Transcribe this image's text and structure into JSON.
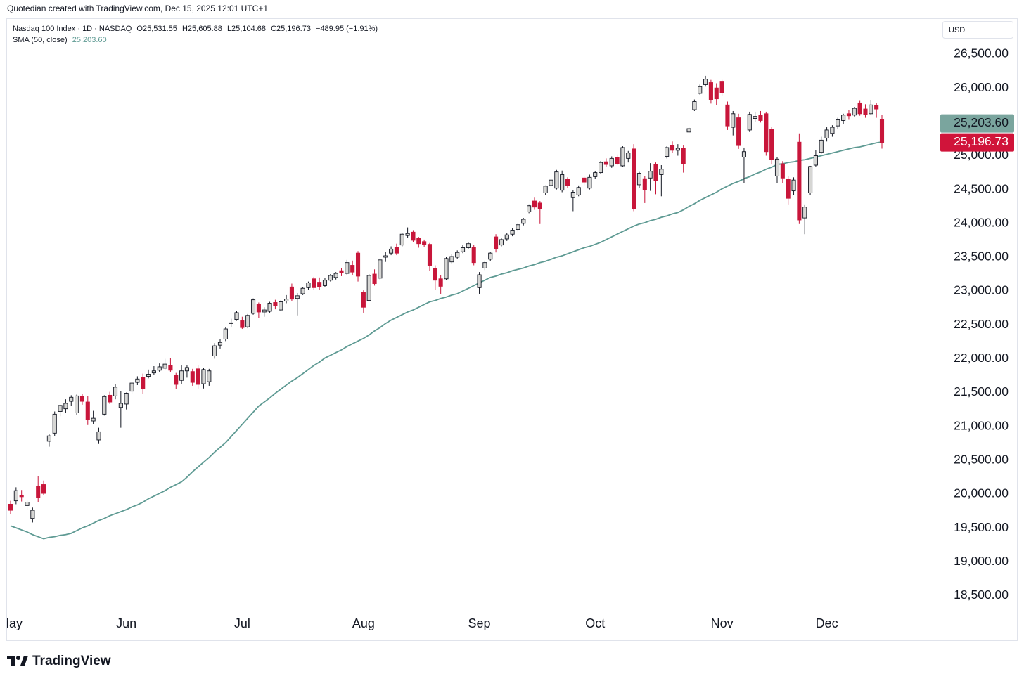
{
  "header": {
    "credit": "Quotedian created with TradingView.com, Dec 15, 2025 12:01 UTC+1"
  },
  "brand": "TradingView",
  "chart_data": {
    "type": "candlestick",
    "symbol": "Nasdaq 100 Index · 1D · NASDAQ",
    "legend_values": [
      "O25,531.55",
      "H25,605.88",
      "L25,104.68",
      "C25,196.73",
      "−489.95 (−1.91%)"
    ],
    "currency": "USD",
    "up_color": "#d6d6d4",
    "down_color": "#c8163a",
    "grid": false,
    "ylim": [
      17840,
      27020
    ],
    "yticks": [
      {
        "value": 18500,
        "label": "18,500.00"
      },
      {
        "value": 19000,
        "label": "19,000.00"
      },
      {
        "value": 19500,
        "label": "19,500.00"
      },
      {
        "value": 20000,
        "label": "20,000.00"
      },
      {
        "value": 20500,
        "label": "20,500.00"
      },
      {
        "value": 21000,
        "label": "21,000.00"
      },
      {
        "value": 21500,
        "label": "21,500.00"
      },
      {
        "value": 22000,
        "label": "22,000.00"
      },
      {
        "value": 22500,
        "label": "22,500.00"
      },
      {
        "value": 23000,
        "label": "23,000.00"
      },
      {
        "value": 23500,
        "label": "23,500.00"
      },
      {
        "value": 24000,
        "label": "24,000.00"
      },
      {
        "value": 24500,
        "label": "24,500.00"
      },
      {
        "value": 25000,
        "label": "25,000.00"
      },
      {
        "value": 25500,
        "label": "25,500.00"
      },
      {
        "value": 26000,
        "label": "26,000.00"
      },
      {
        "value": 26500,
        "label": "26,500.00"
      }
    ],
    "categories": [
      "May",
      null,
      null,
      null,
      null,
      null,
      null,
      null,
      null,
      null,
      null,
      null,
      null,
      null,
      null,
      null,
      null,
      null,
      null,
      null,
      null,
      "Jun",
      null,
      null,
      null,
      null,
      null,
      null,
      null,
      null,
      null,
      null,
      null,
      null,
      null,
      null,
      null,
      null,
      null,
      null,
      null,
      null,
      "Jul",
      null,
      null,
      null,
      null,
      null,
      null,
      null,
      null,
      null,
      null,
      null,
      null,
      null,
      null,
      null,
      null,
      null,
      null,
      null,
      null,
      null,
      "Aug",
      null,
      null,
      null,
      null,
      null,
      null,
      null,
      null,
      null,
      null,
      null,
      null,
      null,
      null,
      null,
      null,
      null,
      null,
      null,
      null,
      "Sep",
      null,
      null,
      null,
      null,
      null,
      null,
      null,
      null,
      null,
      null,
      null,
      null,
      null,
      null,
      null,
      null,
      null,
      null,
      null,
      null,
      "Oct",
      null,
      null,
      null,
      null,
      null,
      null,
      null,
      null,
      null,
      null,
      null,
      null,
      null,
      null,
      null,
      null,
      null,
      null,
      null,
      null,
      null,
      null,
      "Nov",
      null,
      null,
      null,
      null,
      null,
      null,
      null,
      null,
      null,
      null,
      null,
      null,
      null,
      null,
      null,
      null,
      null,
      null,
      "Dec",
      null,
      null,
      null,
      null,
      null,
      null,
      null,
      null,
      null,
      null
    ],
    "candles": [
      [
        19850,
        19900,
        19700,
        19760
      ],
      [
        19900,
        20100,
        19850,
        20050
      ],
      [
        19980,
        20060,
        19890,
        19960
      ],
      [
        19830,
        19920,
        19760,
        19880
      ],
      [
        19640,
        19800,
        19580,
        19760
      ],
      [
        20120,
        20260,
        19880,
        19950
      ],
      [
        20140,
        20200,
        19980,
        20010
      ],
      [
        20780,
        20890,
        20700,
        20860
      ],
      [
        20900,
        21220,
        20860,
        21180
      ],
      [
        21220,
        21320,
        21150,
        21310
      ],
      [
        21260,
        21400,
        21200,
        21340
      ],
      [
        21370,
        21460,
        21300,
        21430
      ],
      [
        21200,
        21470,
        21170,
        21450
      ],
      [
        21440,
        21480,
        21320,
        21370
      ],
      [
        21360,
        21450,
        21020,
        21100
      ],
      [
        21080,
        21230,
        21030,
        21120
      ],
      [
        20800,
        20980,
        20740,
        20920
      ],
      [
        21180,
        21460,
        21160,
        21440
      ],
      [
        21460,
        21510,
        21330,
        21360
      ],
      [
        21450,
        21620,
        21400,
        21580
      ],
      [
        21280,
        21520,
        20980,
        21340
      ],
      [
        21330,
        21500,
        21250,
        21490
      ],
      [
        21520,
        21660,
        21480,
        21640
      ],
      [
        21650,
        21740,
        21610,
        21700
      ],
      [
        21720,
        21780,
        21480,
        21560
      ],
      [
        21740,
        21840,
        21710,
        21770
      ],
      [
        21790,
        21890,
        21760,
        21820
      ],
      [
        21830,
        21930,
        21800,
        21880
      ],
      [
        21860,
        22000,
        21830,
        21920
      ],
      [
        21900,
        22010,
        21800,
        21830
      ],
      [
        21760,
        21790,
        21550,
        21620
      ],
      [
        21680,
        21900,
        21620,
        21820
      ],
      [
        21820,
        21900,
        21720,
        21870
      ],
      [
        21810,
        21850,
        21600,
        21650
      ],
      [
        21850,
        21900,
        21560,
        21620
      ],
      [
        21630,
        21860,
        21560,
        21840
      ],
      [
        21660,
        21850,
        21600,
        21820
      ],
      [
        22040,
        22230,
        22000,
        22190
      ],
      [
        22200,
        22290,
        22150,
        22240
      ],
      [
        22290,
        22470,
        22260,
        22440
      ],
      [
        22520,
        22590,
        22470,
        22530
      ],
      [
        22580,
        22700,
        22560,
        22680
      ],
      [
        22560,
        22620,
        22440,
        22460
      ],
      [
        22470,
        22660,
        22450,
        22640
      ],
      [
        22670,
        22890,
        22650,
        22870
      ],
      [
        22800,
        22830,
        22600,
        22690
      ],
      [
        22690,
        22760,
        22620,
        22720
      ],
      [
        22700,
        22840,
        22680,
        22820
      ],
      [
        22830,
        22870,
        22730,
        22780
      ],
      [
        22720,
        22860,
        22700,
        22840
      ],
      [
        22850,
        22940,
        22820,
        22880
      ],
      [
        23060,
        23110,
        22850,
        22880
      ],
      [
        22890,
        22970,
        22640,
        22930
      ],
      [
        22960,
        23060,
        22940,
        23040
      ],
      [
        23050,
        23140,
        23020,
        23120
      ],
      [
        23180,
        23210,
        23020,
        23050
      ],
      [
        23130,
        23200,
        23020,
        23060
      ],
      [
        23080,
        23190,
        23060,
        23160
      ],
      [
        23160,
        23250,
        23140,
        23230
      ],
      [
        23200,
        23280,
        23170,
        23260
      ],
      [
        23300,
        23340,
        23220,
        23270
      ],
      [
        23260,
        23460,
        23240,
        23420
      ],
      [
        23380,
        23450,
        23230,
        23280
      ],
      [
        23560,
        23590,
        23140,
        23220
      ],
      [
        22980,
        23010,
        22680,
        22760
      ],
      [
        22860,
        23250,
        22850,
        23230
      ],
      [
        23250,
        23320,
        23080,
        23110
      ],
      [
        23190,
        23480,
        23170,
        23460
      ],
      [
        23500,
        23580,
        23430,
        23520
      ],
      [
        23560,
        23660,
        23530,
        23620
      ],
      [
        23650,
        23700,
        23530,
        23560
      ],
      [
        23680,
        23860,
        23660,
        23840
      ],
      [
        23820,
        23940,
        23780,
        23850
      ],
      [
        23870,
        23900,
        23720,
        23750
      ],
      [
        23780,
        23800,
        23640,
        23700
      ],
      [
        23730,
        23760,
        23650,
        23690
      ],
      [
        23690,
        23710,
        23300,
        23380
      ],
      [
        23330,
        23380,
        23020,
        23160
      ],
      [
        23180,
        23230,
        22960,
        23070
      ],
      [
        23180,
        23500,
        23160,
        23480
      ],
      [
        23430,
        23550,
        23410,
        23510
      ],
      [
        23500,
        23600,
        23470,
        23570
      ],
      [
        23580,
        23680,
        23560,
        23640
      ],
      [
        23640,
        23720,
        23620,
        23700
      ],
      [
        23650,
        23680,
        23380,
        23420
      ],
      [
        23050,
        23280,
        22960,
        23240
      ],
      [
        23340,
        23450,
        23310,
        23420
      ],
      [
        23470,
        23580,
        23440,
        23560
      ],
      [
        23800,
        23840,
        23570,
        23620
      ],
      [
        23680,
        23790,
        23660,
        23760
      ],
      [
        23770,
        23860,
        23740,
        23830
      ],
      [
        23840,
        23930,
        23810,
        23900
      ],
      [
        23910,
        24000,
        23880,
        23980
      ],
      [
        24000,
        24080,
        23970,
        24060
      ],
      [
        24170,
        24280,
        24150,
        24260
      ],
      [
        24330,
        24380,
        24200,
        24240
      ],
      [
        24300,
        24330,
        23990,
        24220
      ],
      [
        24450,
        24560,
        24420,
        24550
      ],
      [
        24560,
        24660,
        24540,
        24640
      ],
      [
        24520,
        24790,
        24500,
        24760
      ],
      [
        24490,
        24780,
        24460,
        24720
      ],
      [
        24650,
        24680,
        24520,
        24560
      ],
      [
        24380,
        24490,
        24180,
        24460
      ],
      [
        24420,
        24560,
        24400,
        24530
      ],
      [
        24670,
        24700,
        24560,
        24610
      ],
      [
        24520,
        24720,
        24500,
        24680
      ],
      [
        24690,
        24770,
        24660,
        24750
      ],
      [
        24750,
        24920,
        24730,
        24900
      ],
      [
        24910,
        24960,
        24840,
        24870
      ],
      [
        24850,
        24990,
        24820,
        24960
      ],
      [
        24980,
        25020,
        24860,
        24880
      ],
      [
        24850,
        25140,
        24830,
        25120
      ],
      [
        24960,
        25070,
        24900,
        25040
      ],
      [
        25100,
        25170,
        24180,
        24220
      ],
      [
        24570,
        24760,
        24520,
        24740
      ],
      [
        24660,
        24700,
        24300,
        24500
      ],
      [
        24670,
        24890,
        24480,
        24770
      ],
      [
        24870,
        24900,
        24430,
        24630
      ],
      [
        24720,
        24860,
        24400,
        24800
      ],
      [
        24990,
        25140,
        24960,
        25120
      ],
      [
        25150,
        25210,
        25040,
        25080
      ],
      [
        25080,
        25170,
        25000,
        25110
      ],
      [
        25110,
        25150,
        24750,
        24880
      ],
      [
        25350,
        25420,
        25340,
        25400
      ],
      [
        25680,
        25830,
        25660,
        25800
      ],
      [
        25920,
        26050,
        25900,
        26020
      ],
      [
        26050,
        26180,
        26020,
        26130
      ],
      [
        26080,
        26120,
        25770,
        25830
      ],
      [
        26000,
        26070,
        25750,
        25840
      ],
      [
        26100,
        26120,
        25890,
        25930
      ],
      [
        25750,
        25800,
        25380,
        25440
      ],
      [
        25420,
        25660,
        25300,
        25620
      ],
      [
        25560,
        25620,
        25100,
        25150
      ],
      [
        24980,
        25120,
        24600,
        25060
      ],
      [
        25380,
        25650,
        25350,
        25610
      ],
      [
        25550,
        25650,
        25500,
        25580
      ],
      [
        25600,
        25660,
        25490,
        25520
      ],
      [
        25620,
        25650,
        25000,
        25060
      ],
      [
        25390,
        25420,
        24870,
        24940
      ],
      [
        24700,
        24980,
        24600,
        24950
      ],
      [
        24880,
        24920,
        24600,
        24670
      ],
      [
        24650,
        24700,
        24280,
        24370
      ],
      [
        24480,
        24680,
        24420,
        24640
      ],
      [
        25200,
        25330,
        23990,
        24050
      ],
      [
        24080,
        24280,
        23840,
        24240
      ],
      [
        24450,
        24850,
        24420,
        24840
      ],
      [
        24860,
        25080,
        24840,
        25000
      ],
      [
        25050,
        25280,
        25030,
        25230
      ],
      [
        25260,
        25420,
        25210,
        25380
      ],
      [
        25330,
        25450,
        25280,
        25420
      ],
      [
        25440,
        25560,
        25400,
        25530
      ],
      [
        25520,
        25620,
        25470,
        25600
      ],
      [
        25620,
        25680,
        25530,
        25590
      ],
      [
        25600,
        25720,
        25580,
        25700
      ],
      [
        25780,
        25810,
        25590,
        25620
      ],
      [
        25690,
        25760,
        25560,
        25610
      ],
      [
        25620,
        25820,
        25600,
        25750
      ],
      [
        25740,
        25780,
        25560,
        25690
      ],
      [
        25531.55,
        25605.88,
        25104.68,
        25196.73
      ]
    ],
    "sma": {
      "name": "SMA (50, close)",
      "value_label": "25,203.60",
      "color": "#5e9a93",
      "values": [
        19530,
        19500,
        19470,
        19440,
        19400,
        19370,
        19340,
        19360,
        19370,
        19390,
        19400,
        19420,
        19460,
        19500,
        19530,
        19570,
        19610,
        19640,
        19680,
        19710,
        19740,
        19770,
        19810,
        19840,
        19880,
        19930,
        19970,
        20010,
        20050,
        20100,
        20140,
        20180,
        20250,
        20330,
        20400,
        20470,
        20540,
        20620,
        20690,
        20760,
        20850,
        20940,
        21030,
        21120,
        21210,
        21300,
        21360,
        21420,
        21490,
        21550,
        21610,
        21670,
        21720,
        21780,
        21840,
        21900,
        21950,
        22010,
        22050,
        22090,
        22130,
        22180,
        22220,
        22260,
        22300,
        22350,
        22410,
        22460,
        22520,
        22570,
        22610,
        22650,
        22690,
        22720,
        22760,
        22800,
        22840,
        22860,
        22890,
        22910,
        22940,
        22960,
        23000,
        23040,
        23080,
        23120,
        23160,
        23200,
        23220,
        23250,
        23270,
        23300,
        23320,
        23340,
        23370,
        23390,
        23420,
        23440,
        23470,
        23500,
        23520,
        23550,
        23580,
        23610,
        23640,
        23660,
        23690,
        23720,
        23760,
        23800,
        23840,
        23880,
        23920,
        23960,
        23990,
        24010,
        24040,
        24060,
        24090,
        24110,
        24140,
        24160,
        24200,
        24250,
        24290,
        24340,
        24380,
        24420,
        24460,
        24510,
        24550,
        24590,
        24620,
        24660,
        24690,
        24730,
        24760,
        24800,
        24830,
        24870,
        24880,
        24900,
        24910,
        24930,
        24940,
        24960,
        24980,
        25000,
        25020,
        25040,
        25060,
        25080,
        25100,
        25120,
        25130,
        25150,
        25170,
        25190,
        25203.6
      ]
    },
    "price_labels": {
      "sma": "25,203.60",
      "sma_color": "#7aa59e",
      "close": "25,196.73",
      "close_color": "#d0143a"
    }
  }
}
